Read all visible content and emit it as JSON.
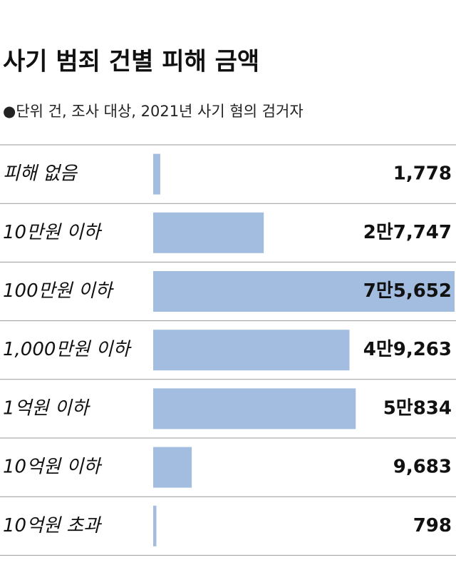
{
  "chart_data": {
    "type": "bar",
    "orientation": "horizontal",
    "title": "사기 범죄 건별 피해 금액",
    "subtitle": "●단위  건, 조사 대상, 2021년 사기 혐의 검거자",
    "categories": [
      "피해 없음",
      "10만원 이하",
      "100만원 이하",
      "1,000만원 이하",
      "1억원 이하",
      "10억원 이하",
      "10억원 초과"
    ],
    "values": [
      1778,
      27747,
      75652,
      49263,
      50834,
      9683,
      798
    ],
    "value_labels": [
      "1,778",
      "2만7,747",
      "7만5,652",
      "4만9,263",
      "5만834",
      "9,683",
      "798"
    ],
    "color": "#a3bde0",
    "xlim": [
      0,
      76000
    ]
  }
}
